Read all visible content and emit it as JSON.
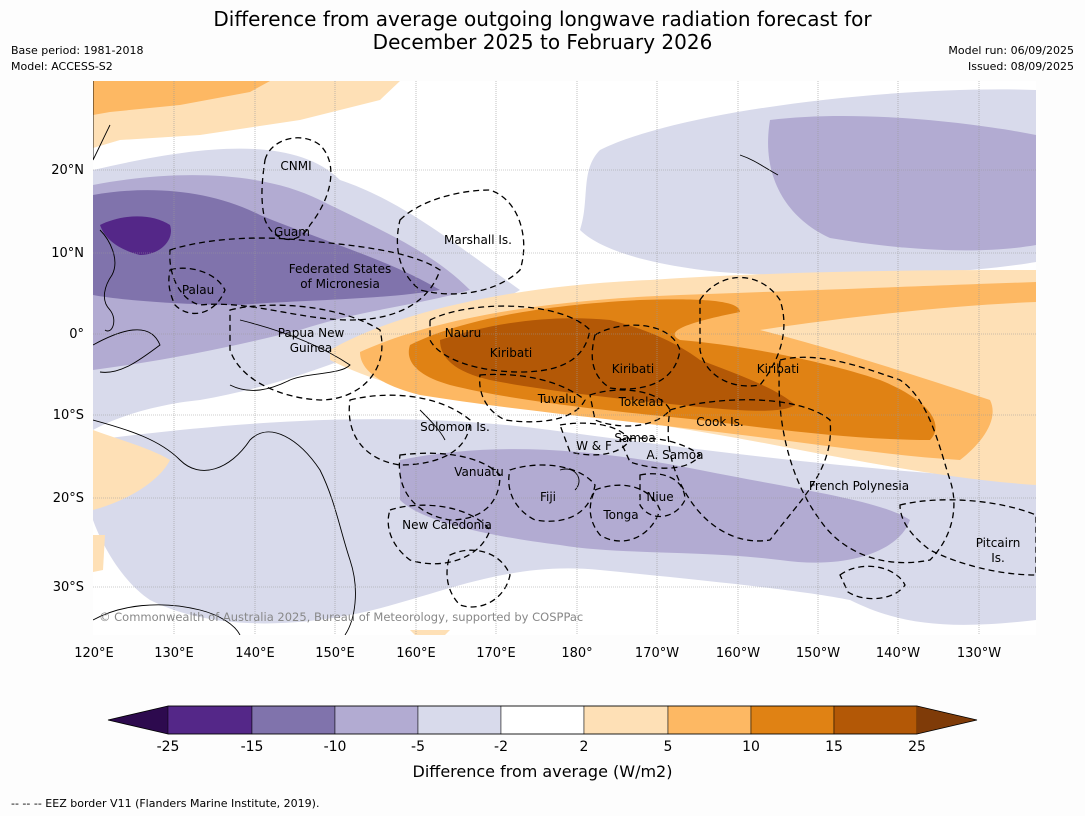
{
  "header": {
    "title_line1": "Difference from average outgoing longwave radiation forecast for",
    "title_line2": "December 2025 to February 2026",
    "base_period": "Base period: 1981-2018",
    "model": "Model: ACCESS-S2",
    "model_run": "Model run: 06/09/2025",
    "issued": "Issued: 08/09/2025"
  },
  "map": {
    "lat_labels": [
      "20°N",
      "10°N",
      "0°",
      "10°S",
      "20°S",
      "30°S"
    ],
    "lon_labels": [
      "120°E",
      "130°E",
      "140°E",
      "150°E",
      "160°E",
      "170°E",
      "180°",
      "170°W",
      "160°W",
      "150°W",
      "140°W",
      "130°W"
    ],
    "region_labels": [
      {
        "text": "CNMI"
      },
      {
        "text": "Guam"
      },
      {
        "text": "Marshall Is."
      },
      {
        "text": "Federated States"
      },
      {
        "text": "of Micronesia"
      },
      {
        "text": "Palau"
      },
      {
        "text": "Papua New"
      },
      {
        "text": "Guinea"
      },
      {
        "text": "Nauru"
      },
      {
        "text": "Kiribati"
      },
      {
        "text": "Kiribati"
      },
      {
        "text": "Kiribati"
      },
      {
        "text": "Tuvalu"
      },
      {
        "text": "Tokelau"
      },
      {
        "text": "Cook Is."
      },
      {
        "text": "Solomon Is."
      },
      {
        "text": "Samoa"
      },
      {
        "text": "W & F"
      },
      {
        "text": "A. Samoa"
      },
      {
        "text": "Vanuatu"
      },
      {
        "text": "Fiji"
      },
      {
        "text": "Niue"
      },
      {
        "text": "Tonga"
      },
      {
        "text": "French Polynesia"
      },
      {
        "text": "New Caledonia"
      },
      {
        "text": "Pitcairn"
      },
      {
        "text": "Is."
      }
    ],
    "copyright": "© Commonwealth of Australia 2025, Bureau of Meteorology, supported by COSPPac"
  },
  "colorbar": {
    "ticks": [
      "-25",
      "-15",
      "-10",
      "-5",
      "-2",
      "2",
      "5",
      "10",
      "15",
      "25"
    ],
    "colors": [
      "#2d0a4e",
      "#542788",
      "#8073ac",
      "#b2abd2",
      "#d8daeb",
      "#ffffff",
      "#fee0b6",
      "#fdb863",
      "#e08214",
      "#b35806",
      "#7f3b08"
    ],
    "label": "Difference from average (W/m2)"
  },
  "footnote": "--  --  -- EEZ border V11 (Flanders Marine Institute, 2019)."
}
